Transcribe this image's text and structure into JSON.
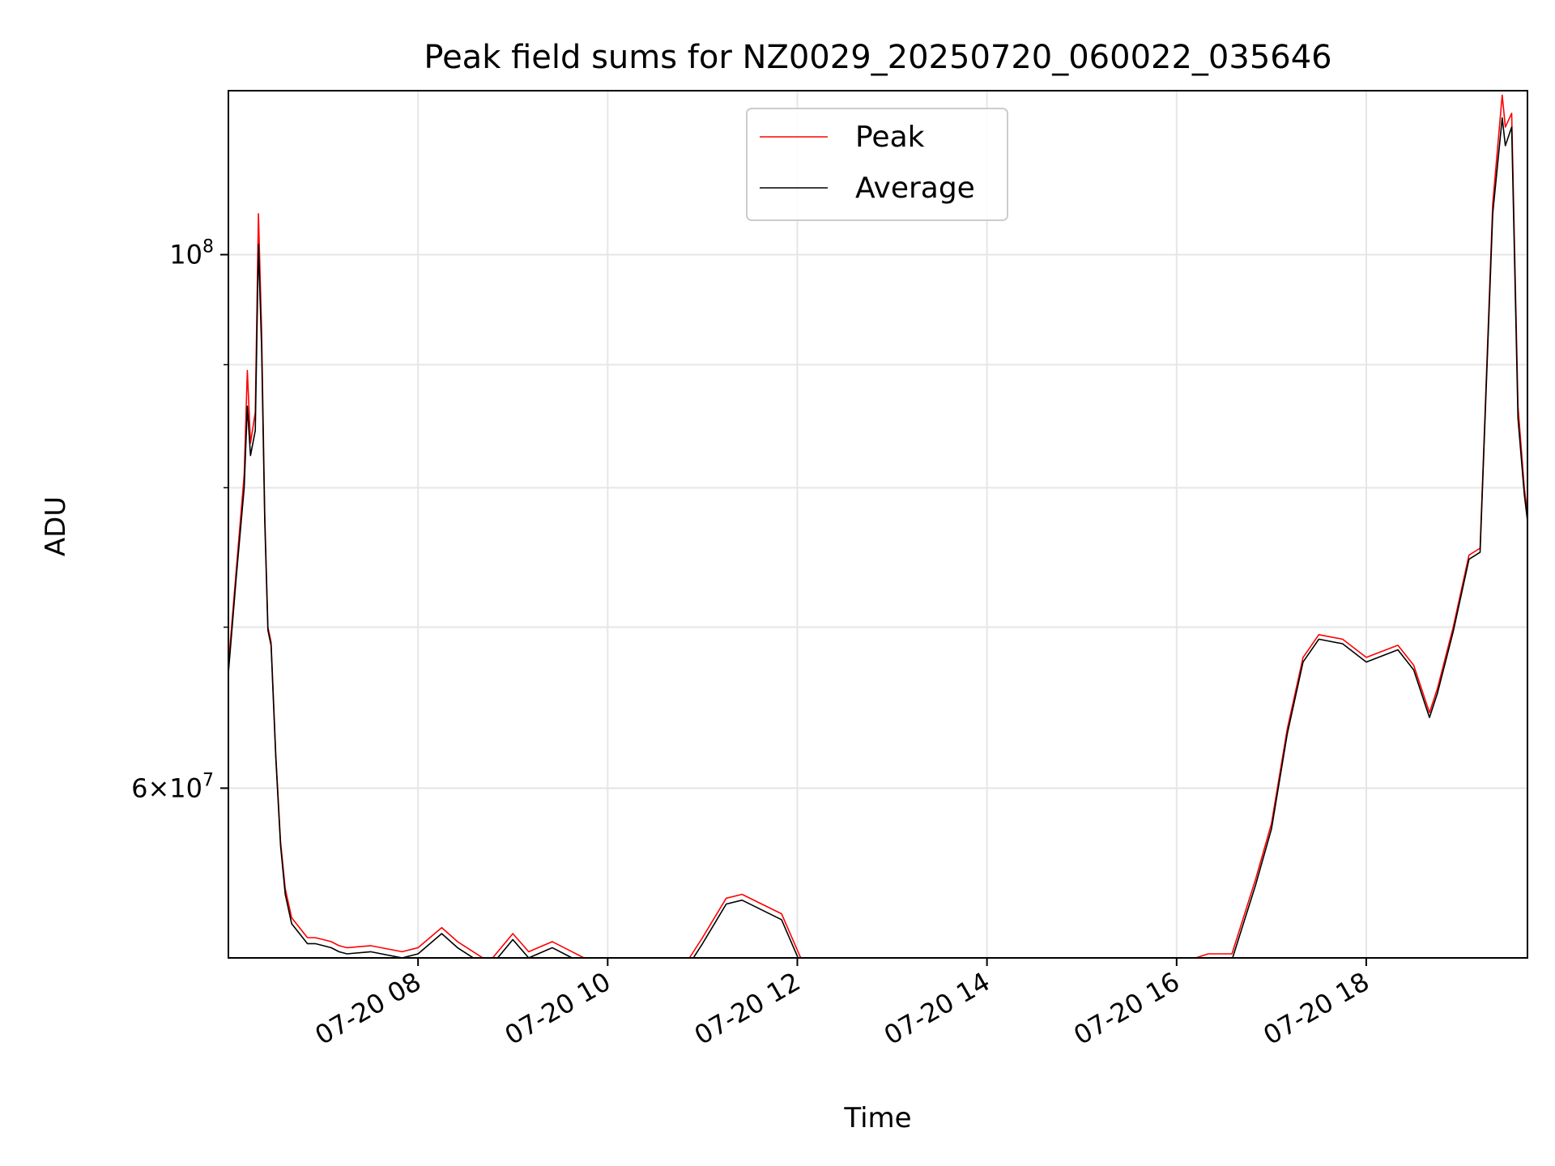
{
  "chart_data": {
    "type": "line",
    "title": "Peak field sums for NZ0029_20250720_060022_035646",
    "xlabel": "Time",
    "ylabel": "ADU",
    "yscale": "log",
    "xlim": [
      "2025-07-20 06:00",
      "2025-07-20 19:42"
    ],
    "ylim": [
      51000000,
      117000000
    ],
    "x_ticks": [
      {
        "x": "2025-07-20 08:00",
        "label": "07-20 08"
      },
      {
        "x": "2025-07-20 10:00",
        "label": "07-20 10"
      },
      {
        "x": "2025-07-20 12:00",
        "label": "07-20 12"
      },
      {
        "x": "2025-07-20 14:00",
        "label": "07-20 14"
      },
      {
        "x": "2025-07-20 16:00",
        "label": "07-20 16"
      },
      {
        "x": "2025-07-20 18:00",
        "label": "07-20 18"
      }
    ],
    "y_ticks_major": [
      {
        "value": 100000000,
        "label": "10^8"
      },
      {
        "value": 60000000,
        "label": "6×10^7"
      }
    ],
    "y_minor_gridlines": [
      90000000,
      80000000,
      70000000,
      60000000,
      50000000
    ],
    "grid": true,
    "legend": {
      "position": "top-center"
    },
    "series": [
      {
        "name": "Peak",
        "color": "#ff0000",
        "x": [
          "2025-07-20 06:00",
          "2025-07-20 06:05",
          "2025-07-20 06:10",
          "2025-07-20 06:12",
          "2025-07-20 06:14",
          "2025-07-20 06:17",
          "2025-07-20 06:19",
          "2025-07-20 06:21",
          "2025-07-20 06:23",
          "2025-07-20 06:25",
          "2025-07-20 06:27",
          "2025-07-20 06:30",
          "2025-07-20 06:33",
          "2025-07-20 06:36",
          "2025-07-20 06:40",
          "2025-07-20 06:45",
          "2025-07-20 06:50",
          "2025-07-20 06:55",
          "2025-07-20 07:00",
          "2025-07-20 07:05",
          "2025-07-20 07:10",
          "2025-07-20 07:15",
          "2025-07-20 07:30",
          "2025-07-20 07:50",
          "2025-07-20 08:00",
          "2025-07-20 08:15",
          "2025-07-20 08:25",
          "2025-07-20 08:45",
          "2025-07-20 09:00",
          "2025-07-20 09:10",
          "2025-07-20 09:25",
          "2025-07-20 09:35",
          "2025-07-20 09:45",
          "2025-07-20 10:00",
          "2025-07-20 10:15",
          "2025-07-20 10:30",
          "2025-07-20 10:45",
          "2025-07-20 11:00",
          "2025-07-20 11:15",
          "2025-07-20 11:25",
          "2025-07-20 11:35",
          "2025-07-20 11:50",
          "2025-07-20 12:05",
          "2025-07-20 12:20",
          "2025-07-20 12:40",
          "2025-07-20 13:00",
          "2025-07-20 13:20",
          "2025-07-20 13:40",
          "2025-07-20 14:00",
          "2025-07-20 14:30",
          "2025-07-20 15:00",
          "2025-07-20 15:30",
          "2025-07-20 16:00",
          "2025-07-20 16:20",
          "2025-07-20 16:35",
          "2025-07-20 16:50",
          "2025-07-20 17:00",
          "2025-07-20 17:10",
          "2025-07-20 17:20",
          "2025-07-20 17:30",
          "2025-07-20 17:45",
          "2025-07-20 18:00",
          "2025-07-20 18:20",
          "2025-07-20 18:30",
          "2025-07-20 18:40",
          "2025-07-20 18:45",
          "2025-07-20 18:55",
          "2025-07-20 19:05",
          "2025-07-20 19:12",
          "2025-07-20 19:20",
          "2025-07-20 19:26",
          "2025-07-20 19:28",
          "2025-07-20 19:32",
          "2025-07-20 19:36",
          "2025-07-20 19:40",
          "2025-07-20 19:42"
        ],
        "y": [
          67500000,
          74000000,
          81000000,
          89500000,
          83500000,
          86000000,
          104000000,
          93000000,
          78000000,
          70000000,
          69000000,
          62000000,
          57000000,
          54500000,
          53000000,
          52500000,
          52000000,
          52000000,
          51900000,
          51800000,
          51600000,
          51500000,
          51600000,
          51300000,
          51500000,
          52500000,
          51800000,
          50800000,
          52200000,
          51300000,
          51800000,
          51400000,
          51000000,
          50300000,
          50800000,
          50500000,
          50200000,
          52000000,
          54000000,
          54200000,
          53800000,
          53200000,
          50500000,
          50200000,
          50400000,
          49900000,
          49700000,
          49900000,
          50200000,
          50500000,
          50800000,
          50800000,
          50700000,
          51200000,
          51200000,
          55000000,
          58000000,
          63500000,
          68000000,
          69500000,
          69200000,
          68000000,
          68800000,
          67500000,
          64500000,
          66000000,
          70000000,
          75000000,
          75500000,
          105000000,
          116500000,
          113000000,
          114500000,
          86500000,
          80000000,
          78000000
        ]
      },
      {
        "name": "Average",
        "color": "#000000",
        "x": [
          "2025-07-20 06:00",
          "2025-07-20 06:05",
          "2025-07-20 06:10",
          "2025-07-20 06:12",
          "2025-07-20 06:14",
          "2025-07-20 06:17",
          "2025-07-20 06:19",
          "2025-07-20 06:21",
          "2025-07-20 06:23",
          "2025-07-20 06:25",
          "2025-07-20 06:27",
          "2025-07-20 06:30",
          "2025-07-20 06:33",
          "2025-07-20 06:36",
          "2025-07-20 06:40",
          "2025-07-20 06:45",
          "2025-07-20 06:50",
          "2025-07-20 06:55",
          "2025-07-20 07:00",
          "2025-07-20 07:05",
          "2025-07-20 07:10",
          "2025-07-20 07:15",
          "2025-07-20 07:30",
          "2025-07-20 07:50",
          "2025-07-20 08:00",
          "2025-07-20 08:15",
          "2025-07-20 08:25",
          "2025-07-20 08:45",
          "2025-07-20 09:00",
          "2025-07-20 09:10",
          "2025-07-20 09:25",
          "2025-07-20 09:35",
          "2025-07-20 09:45",
          "2025-07-20 10:00",
          "2025-07-20 10:15",
          "2025-07-20 10:30",
          "2025-07-20 10:45",
          "2025-07-20 11:00",
          "2025-07-20 11:15",
          "2025-07-20 11:25",
          "2025-07-20 11:35",
          "2025-07-20 11:50",
          "2025-07-20 12:05",
          "2025-07-20 12:20",
          "2025-07-20 12:40",
          "2025-07-20 13:00",
          "2025-07-20 13:20",
          "2025-07-20 13:40",
          "2025-07-20 14:00",
          "2025-07-20 14:30",
          "2025-07-20 15:00",
          "2025-07-20 15:30",
          "2025-07-20 16:00",
          "2025-07-20 16:20",
          "2025-07-20 16:35",
          "2025-07-20 16:50",
          "2025-07-20 17:00",
          "2025-07-20 17:10",
          "2025-07-20 17:20",
          "2025-07-20 17:30",
          "2025-07-20 17:45",
          "2025-07-20 18:00",
          "2025-07-20 18:20",
          "2025-07-20 18:30",
          "2025-07-20 18:40",
          "2025-07-20 18:45",
          "2025-07-20 18:55",
          "2025-07-20 19:05",
          "2025-07-20 19:12",
          "2025-07-20 19:20",
          "2025-07-20 19:26",
          "2025-07-20 19:28",
          "2025-07-20 19:32",
          "2025-07-20 19:36",
          "2025-07-20 19:40",
          "2025-07-20 19:42"
        ],
        "y": [
          67000000,
          73500000,
          80000000,
          86500000,
          82500000,
          84500000,
          101000000,
          91500000,
          77500000,
          69800000,
          68800000,
          61800000,
          56800000,
          54200000,
          52700000,
          52200000,
          51700000,
          51700000,
          51600000,
          51500000,
          51300000,
          51200000,
          51300000,
          51000000,
          51200000,
          52200000,
          51500000,
          50500000,
          51900000,
          51000000,
          51500000,
          51100000,
          50700000,
          50000000,
          50500000,
          50200000,
          49900000,
          51700000,
          53700000,
          53900000,
          53500000,
          52900000,
          50200000,
          49900000,
          50100000,
          49600000,
          49400000,
          49600000,
          49900000,
          50200000,
          50500000,
          50500000,
          50400000,
          50900000,
          50900000,
          54700000,
          57700000,
          63200000,
          67700000,
          69200000,
          68900000,
          67700000,
          68500000,
          67200000,
          64200000,
          65700000,
          69700000,
          74700000,
          75200000,
          104000000,
          114000000,
          111000000,
          113000000,
          85500000,
          79500000,
          77500000
        ]
      }
    ]
  }
}
